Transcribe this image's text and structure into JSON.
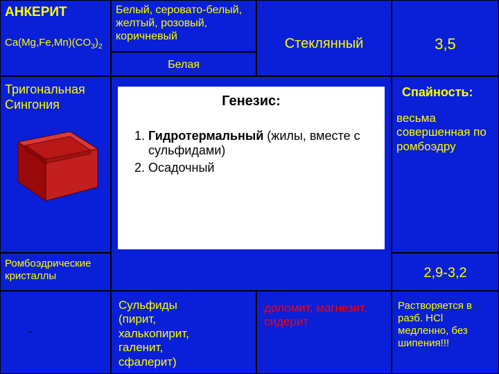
{
  "mineral": {
    "name": "АНКЕРИТ",
    "formula_html": "Ca(Mg,Fe,Mn)(CO<sub>3</sub>)<sub>2</sub>"
  },
  "color_desc": "Белый, серовато-белый, желтый, розовый, коричневый",
  "streak": "Белая",
  "luster": "Стеклянный",
  "hardness": "3,5",
  "system": "Тригональная Сингония",
  "habit": "Ромбоэдрические кристаллы",
  "cleavage_label": "Спайность:",
  "cleavage_text": "весьма совершенная по ромбоэдру",
  "density": "2,9-3,2",
  "bottom_left": "-",
  "associates": "Сульфиды (пирит, халькопирит, галенит, сфалерит)",
  "similar": "доломит, магнезит, сидерит",
  "diagnostic": "Растворяется в разб. HCl медленно, без шипения!!!",
  "genesis": {
    "title": "Генезис:",
    "items": [
      {
        "bold": "Гидротермальный",
        "rest": " (жилы, вместе с сульфидами)"
      },
      {
        "bold": "",
        "rest": "Осадочный"
      }
    ]
  },
  "colors": {
    "bg": "#0a1fd8",
    "yellow": "#ffff00",
    "red": "#ff0000",
    "crystal_top": "#e03030",
    "crystal_side": "#b01010",
    "crystal_front": "#8a0808",
    "crystal_inner": "#d04040"
  }
}
